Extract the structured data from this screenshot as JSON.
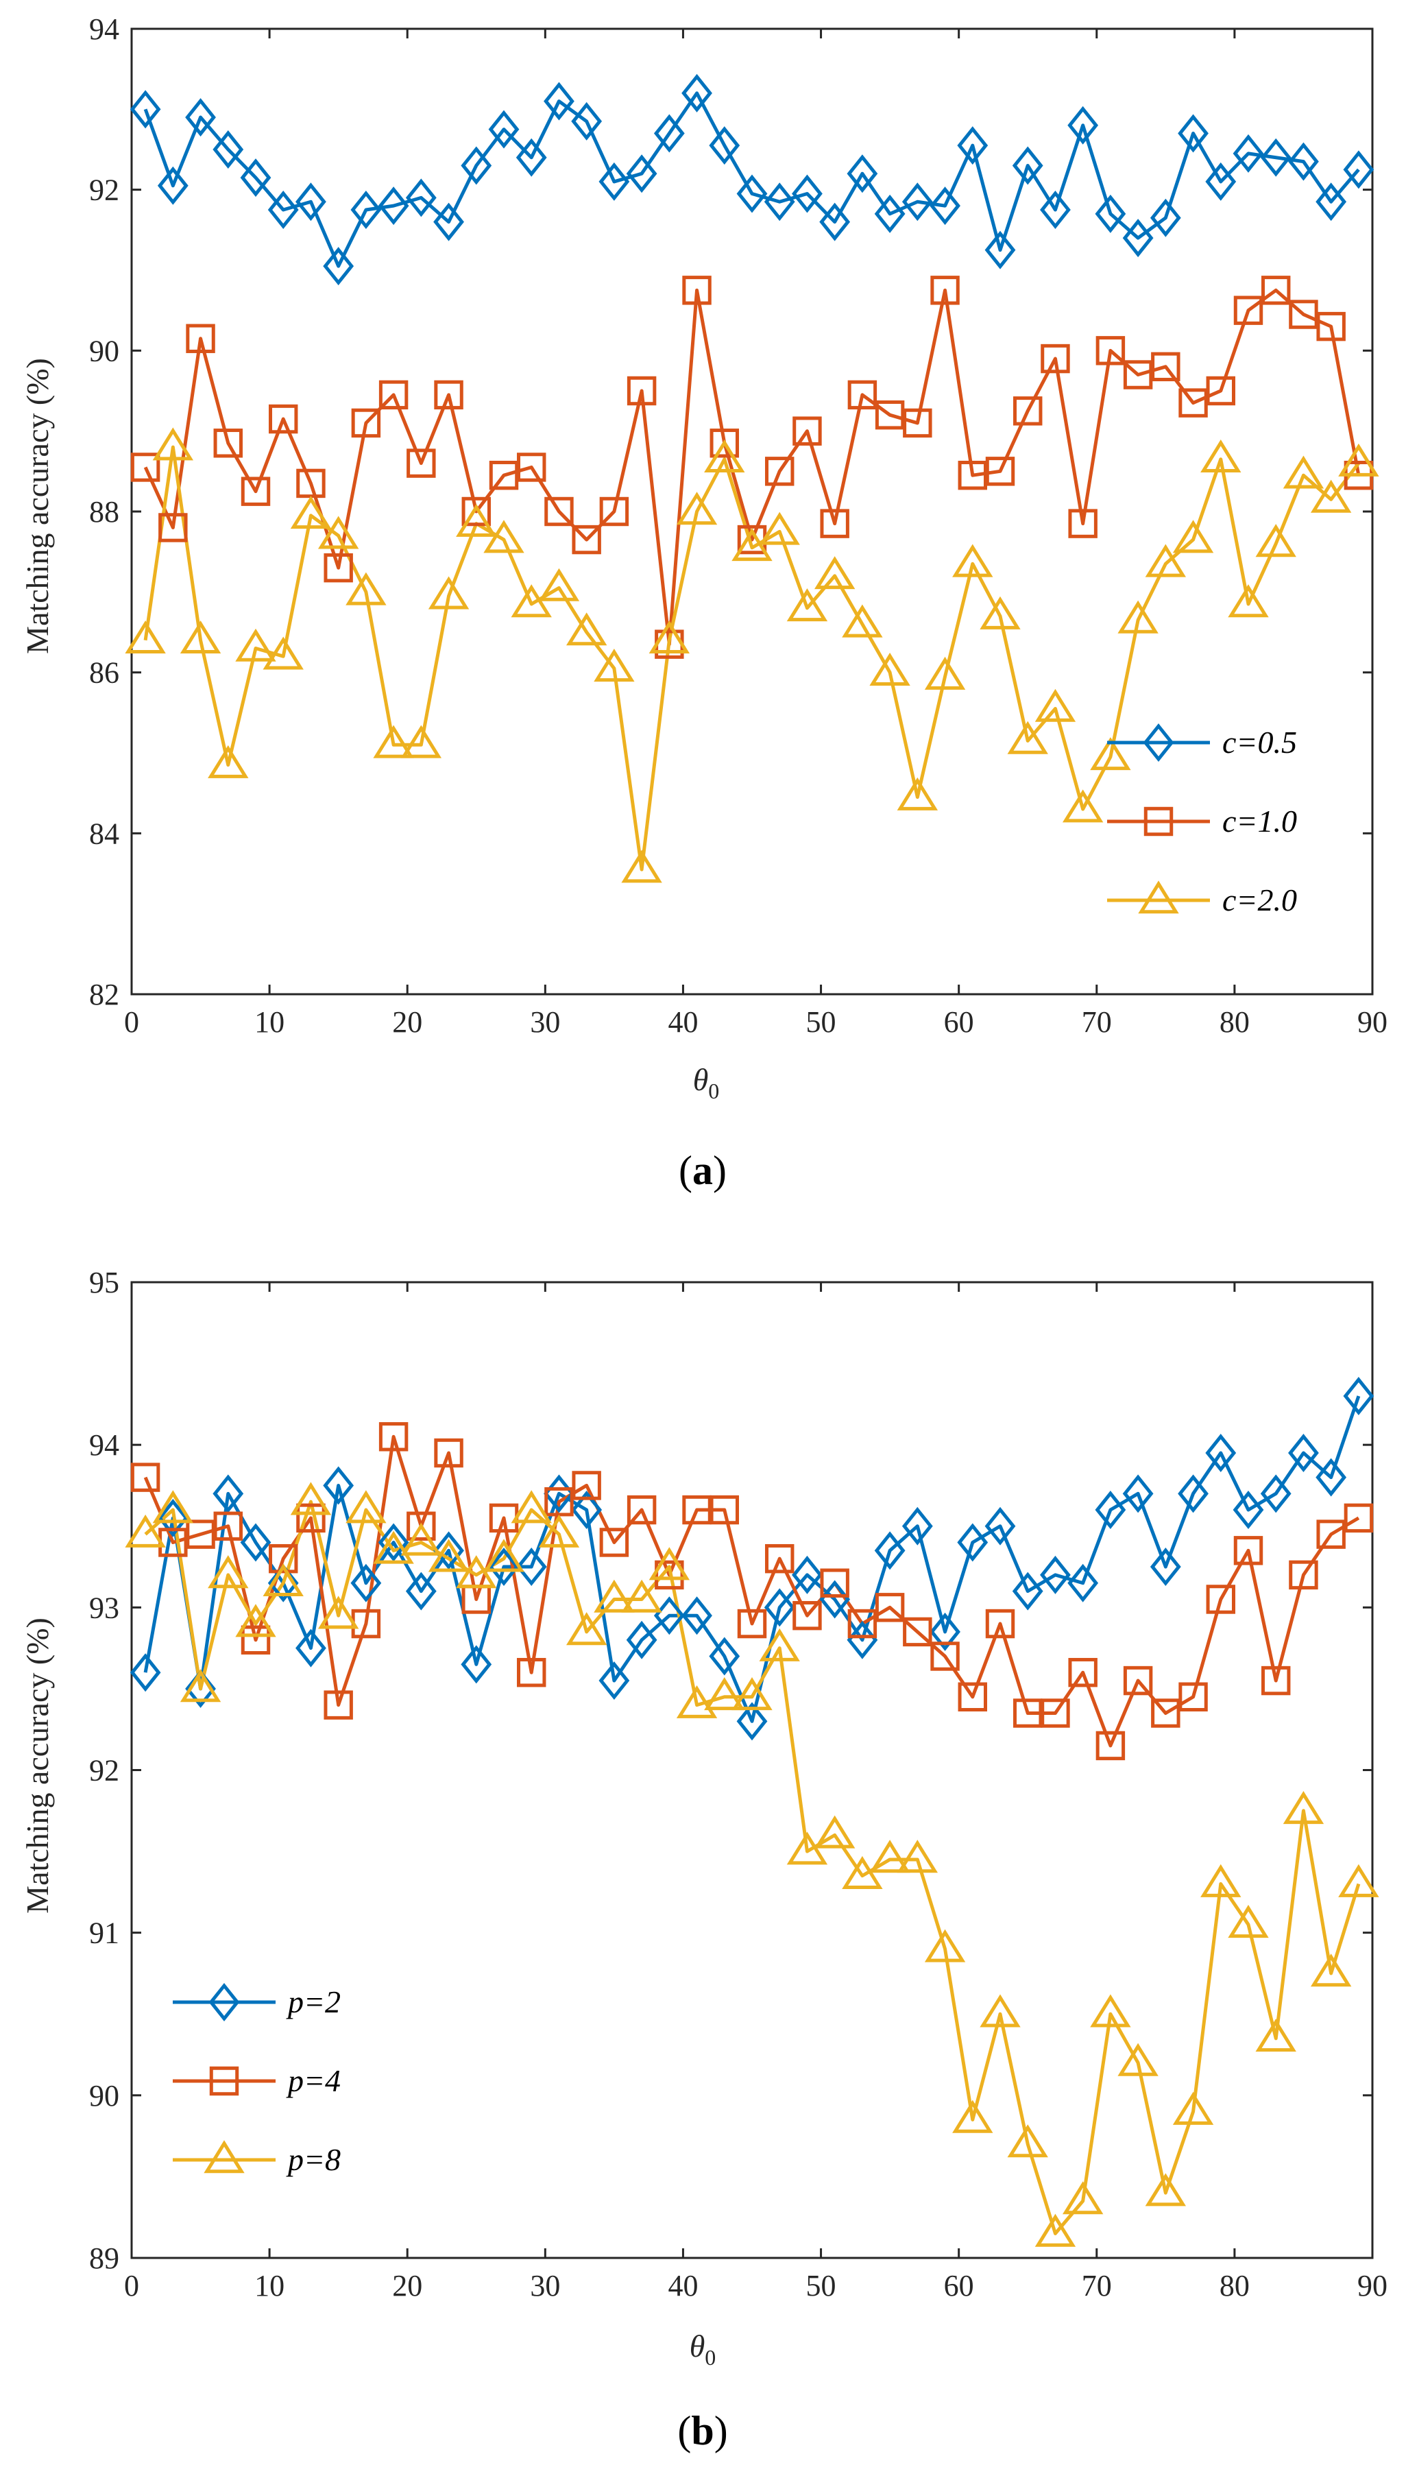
{
  "chart_data": [
    {
      "type": "line",
      "ylabel": "Matching accuracy (%)",
      "xlabel": "θ",
      "xlabel_sub": "0",
      "caption_pre": "(",
      "caption_letter": "a",
      "caption_post": ")",
      "xlim": [
        0,
        90
      ],
      "ylim": [
        82,
        94
      ],
      "xticks": [
        0,
        10,
        20,
        30,
        40,
        50,
        60,
        70,
        80,
        90
      ],
      "yticks": [
        82,
        84,
        86,
        88,
        90,
        92,
        94
      ],
      "legend_position": "bottom-right",
      "x": [
        1,
        3,
        5,
        7,
        9,
        11,
        13,
        15,
        17,
        19,
        21,
        23,
        25,
        27,
        29,
        31,
        33,
        35,
        37,
        39,
        41,
        43,
        45,
        47,
        49,
        51,
        53,
        55,
        57,
        59,
        61,
        63,
        65,
        67,
        69,
        71,
        73,
        75,
        77,
        79,
        81,
        83,
        85,
        87,
        89
      ],
      "series": [
        {
          "name": "c=0.5",
          "color": "#0072BD",
          "marker": "diamond",
          "values": [
            93.0,
            92.05,
            92.9,
            92.5,
            92.15,
            91.75,
            91.85,
            91.05,
            91.75,
            91.8,
            91.9,
            91.6,
            92.3,
            92.75,
            92.4,
            93.1,
            92.85,
            92.1,
            92.2,
            92.7,
            93.2,
            92.55,
            91.95,
            91.85,
            91.95,
            91.6,
            92.2,
            91.7,
            91.85,
            91.8,
            92.55,
            91.25,
            92.3,
            91.75,
            92.8,
            91.7,
            91.4,
            91.65,
            92.7,
            92.1,
            92.45,
            92.4,
            92.35,
            91.85,
            92.25
          ]
        },
        {
          "name": "c=1.0",
          "color": "#D95319",
          "marker": "square",
          "values": [
            88.55,
            87.8,
            90.15,
            88.85,
            88.25,
            89.15,
            88.35,
            87.3,
            89.1,
            89.45,
            88.6,
            89.45,
            88.0,
            88.45,
            88.55,
            88.0,
            87.65,
            88.0,
            89.5,
            86.35,
            90.75,
            88.85,
            87.65,
            88.5,
            89.0,
            87.85,
            89.45,
            89.2,
            89.1,
            90.75,
            88.45,
            88.5,
            89.25,
            89.9,
            87.85,
            90.0,
            89.7,
            89.8,
            89.35,
            89.5,
            90.5,
            90.75,
            90.45,
            90.3,
            88.45
          ]
        },
        {
          "name": "c=2.0",
          "color": "#EDB120",
          "marker": "triangle",
          "values": [
            86.4,
            88.8,
            86.4,
            84.85,
            86.3,
            86.2,
            87.95,
            87.7,
            87.0,
            85.1,
            85.1,
            86.95,
            87.85,
            87.65,
            86.85,
            87.05,
            86.5,
            86.05,
            83.55,
            86.4,
            88.0,
            88.65,
            87.55,
            87.75,
            86.8,
            87.2,
            86.6,
            86.0,
            84.45,
            85.95,
            87.35,
            86.7,
            85.15,
            85.55,
            84.3,
            84.95,
            86.65,
            87.35,
            87.65,
            88.65,
            86.85,
            87.6,
            88.45,
            88.15,
            88.6
          ]
        }
      ]
    },
    {
      "type": "line",
      "ylabel": "Matching accuracy (%)",
      "xlabel": "θ",
      "xlabel_sub": "0",
      "caption_pre": "(",
      "caption_letter": "b",
      "caption_post": ")",
      "xlim": [
        0,
        90
      ],
      "ylim": [
        89,
        95
      ],
      "xticks": [
        0,
        10,
        20,
        30,
        40,
        50,
        60,
        70,
        80,
        90
      ],
      "yticks": [
        89,
        90,
        91,
        92,
        93,
        94,
        95
      ],
      "legend_position": "bottom-left",
      "x": [
        1,
        3,
        5,
        7,
        9,
        11,
        13,
        15,
        17,
        19,
        21,
        23,
        25,
        27,
        29,
        31,
        33,
        35,
        37,
        39,
        41,
        43,
        45,
        47,
        49,
        51,
        53,
        55,
        57,
        59,
        61,
        63,
        65,
        67,
        69,
        71,
        73,
        75,
        77,
        79,
        81,
        83,
        85,
        87,
        89
      ],
      "series": [
        {
          "name": "p=2",
          "color": "#0072BD",
          "marker": "diamond",
          "values": [
            92.6,
            93.55,
            92.5,
            93.7,
            93.4,
            93.15,
            92.75,
            93.75,
            93.15,
            93.4,
            93.1,
            93.35,
            92.65,
            93.25,
            93.25,
            93.7,
            93.6,
            92.55,
            92.8,
            92.95,
            92.95,
            92.7,
            92.3,
            93.0,
            93.2,
            93.05,
            92.8,
            93.35,
            93.5,
            92.85,
            93.4,
            93.5,
            93.1,
            93.2,
            93.15,
            93.6,
            93.7,
            93.25,
            93.7,
            93.95,
            93.6,
            93.7,
            93.95,
            93.8,
            94.3
          ]
        },
        {
          "name": "p=4",
          "color": "#D95319",
          "marker": "square",
          "values": [
            93.8,
            93.4,
            93.45,
            93.5,
            92.8,
            93.3,
            93.55,
            92.4,
            92.9,
            94.05,
            93.5,
            93.95,
            93.05,
            93.55,
            92.6,
            93.65,
            93.75,
            93.4,
            93.6,
            93.2,
            93.6,
            93.6,
            92.9,
            93.3,
            92.95,
            93.15,
            92.9,
            93.0,
            92.85,
            92.7,
            92.45,
            92.9,
            92.35,
            92.35,
            92.6,
            92.15,
            92.55,
            92.35,
            92.45,
            93.05,
            93.35,
            92.55,
            93.2,
            93.45,
            93.55
          ]
        },
        {
          "name": "p=8",
          "color": "#EDB120",
          "marker": "triangle",
          "values": [
            93.45,
            93.6,
            92.5,
            93.2,
            92.9,
            93.15,
            93.65,
            92.95,
            93.6,
            93.35,
            93.4,
            93.3,
            93.2,
            93.3,
            93.6,
            93.45,
            92.85,
            93.05,
            93.05,
            93.25,
            92.4,
            92.45,
            92.45,
            92.75,
            91.5,
            91.6,
            91.35,
            91.45,
            91.45,
            90.9,
            89.85,
            90.5,
            89.7,
            89.15,
            89.35,
            90.5,
            90.2,
            89.4,
            89.9,
            91.3,
            91.05,
            90.35,
            91.75,
            90.75,
            91.3
          ]
        }
      ]
    }
  ]
}
